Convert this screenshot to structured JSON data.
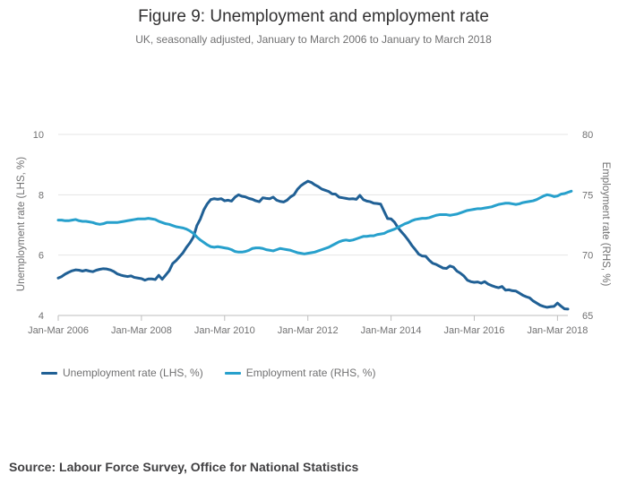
{
  "title": "Figure 9: Unemployment and employment rate",
  "subtitle": "UK, seasonally adjusted, January to March 2006 to January to March 2018",
  "source": "Source: Labour Force Survey, Office for National Statistics",
  "chart_data": {
    "type": "line",
    "xlabel": "",
    "ylabel": "Unemployment rate (LHS, %)",
    "y2label": "Employment rate (RHS, %)",
    "ylim": [
      4,
      10
    ],
    "y2lim": [
      65,
      80
    ],
    "yticks": [
      4,
      6,
      8,
      10
    ],
    "y2ticks": [
      65,
      70,
      75,
      80
    ],
    "xticks": [
      "Jan-Mar 2006",
      "Jan-Mar 2008",
      "Jan-Mar 2010",
      "Jan-Mar 2012",
      "Jan-Mar 2014",
      "Jan-Mar 2016",
      "Jan-Mar 2018"
    ],
    "xtick_index": [
      0,
      24,
      48,
      72,
      96,
      120,
      144
    ],
    "grid": true,
    "legend_position": "bottom-left",
    "series": [
      {
        "name": "Unemployment rate (LHS, %)",
        "axis": "left",
        "color": "#206095",
        "values": [
          5.24,
          5.29,
          5.37,
          5.43,
          5.48,
          5.51,
          5.5,
          5.47,
          5.5,
          5.47,
          5.45,
          5.5,
          5.53,
          5.55,
          5.54,
          5.51,
          5.46,
          5.38,
          5.34,
          5.31,
          5.29,
          5.31,
          5.26,
          5.24,
          5.22,
          5.17,
          5.21,
          5.21,
          5.19,
          5.33,
          5.2,
          5.34,
          5.48,
          5.72,
          5.82,
          5.95,
          6.08,
          6.26,
          6.41,
          6.6,
          6.98,
          7.2,
          7.5,
          7.7,
          7.84,
          7.87,
          7.85,
          7.87,
          7.8,
          7.82,
          7.79,
          7.92,
          8.0,
          7.95,
          7.93,
          7.88,
          7.85,
          7.8,
          7.77,
          7.9,
          7.88,
          7.87,
          7.92,
          7.82,
          7.78,
          7.76,
          7.82,
          7.93,
          8.0,
          8.18,
          8.3,
          8.38,
          8.45,
          8.41,
          8.33,
          8.27,
          8.19,
          8.15,
          8.11,
          8.03,
          8.02,
          7.92,
          7.9,
          7.88,
          7.86,
          7.87,
          7.85,
          7.98,
          7.84,
          7.79,
          7.77,
          7.72,
          7.71,
          7.69,
          7.45,
          7.21,
          7.2,
          7.09,
          6.91,
          6.77,
          6.64,
          6.49,
          6.32,
          6.18,
          6.03,
          5.97,
          5.96,
          5.83,
          5.73,
          5.69,
          5.63,
          5.57,
          5.56,
          5.64,
          5.6,
          5.47,
          5.4,
          5.31,
          5.17,
          5.12,
          5.1,
          5.11,
          5.07,
          5.12,
          5.04,
          4.99,
          4.95,
          4.92,
          4.96,
          4.84,
          4.85,
          4.82,
          4.81,
          4.74,
          4.67,
          4.62,
          4.58,
          4.48,
          4.41,
          4.34,
          4.3,
          4.27,
          4.29,
          4.3,
          4.41,
          4.31,
          4.22,
          4.21
        ]
      },
      {
        "name": "Employment rate (RHS, %)",
        "axis": "right",
        "color": "#27a0cc",
        "values": [
          72.9,
          72.9,
          72.85,
          72.85,
          72.9,
          72.95,
          72.85,
          72.8,
          72.8,
          72.75,
          72.7,
          72.6,
          72.55,
          72.6,
          72.7,
          72.7,
          72.7,
          72.7,
          72.75,
          72.8,
          72.85,
          72.9,
          72.95,
          73.0,
          73.0,
          73.0,
          73.05,
          73.0,
          72.95,
          72.8,
          72.7,
          72.6,
          72.55,
          72.45,
          72.35,
          72.3,
          72.25,
          72.15,
          72.0,
          71.8,
          71.5,
          71.25,
          71.05,
          70.85,
          70.7,
          70.65,
          70.7,
          70.65,
          70.6,
          70.55,
          70.45,
          70.3,
          70.25,
          70.25,
          70.3,
          70.4,
          70.55,
          70.6,
          70.6,
          70.55,
          70.45,
          70.4,
          70.35,
          70.45,
          70.55,
          70.5,
          70.45,
          70.4,
          70.3,
          70.2,
          70.15,
          70.1,
          70.15,
          70.2,
          70.25,
          70.35,
          70.45,
          70.55,
          70.65,
          70.8,
          70.95,
          71.1,
          71.2,
          71.25,
          71.2,
          71.25,
          71.35,
          71.45,
          71.55,
          71.55,
          71.6,
          71.6,
          71.7,
          71.75,
          71.8,
          71.95,
          72.05,
          72.15,
          72.3,
          72.45,
          72.6,
          72.7,
          72.85,
          72.95,
          73.0,
          73.05,
          73.05,
          73.1,
          73.2,
          73.3,
          73.35,
          73.35,
          73.35,
          73.3,
          73.35,
          73.4,
          73.5,
          73.6,
          73.7,
          73.75,
          73.8,
          73.85,
          73.85,
          73.9,
          73.95,
          74.0,
          74.1,
          74.2,
          74.25,
          74.3,
          74.3,
          74.25,
          74.2,
          74.25,
          74.35,
          74.4,
          74.45,
          74.5,
          74.6,
          74.75,
          74.9,
          75.0,
          74.95,
          74.85,
          74.9,
          75.05,
          75.1,
          75.2,
          75.3
        ]
      }
    ]
  }
}
